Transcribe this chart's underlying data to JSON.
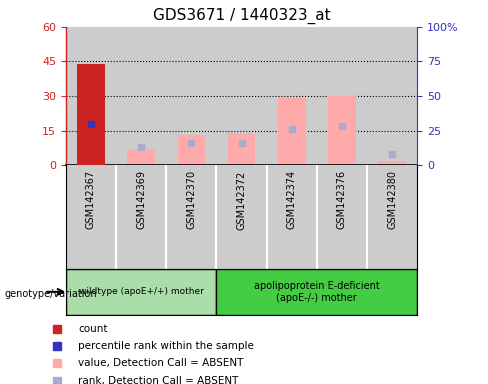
{
  "title": "GDS3671 / 1440323_at",
  "samples": [
    "GSM142367",
    "GSM142369",
    "GSM142370",
    "GSM142372",
    "GSM142374",
    "GSM142376",
    "GSM142380"
  ],
  "count_values": [
    44,
    null,
    null,
    null,
    null,
    null,
    null
  ],
  "percentile_rank": [
    30,
    null,
    null,
    null,
    null,
    null,
    null
  ],
  "absent_value": [
    null,
    7,
    13,
    14,
    29,
    30,
    2
  ],
  "absent_rank": [
    null,
    13,
    16,
    16,
    26,
    28,
    8
  ],
  "ylim_left": [
    0,
    60
  ],
  "ylim_right": [
    0,
    100
  ],
  "yticks_left": [
    0,
    15,
    30,
    45,
    60
  ],
  "ytick_labels_left": [
    "0",
    "15",
    "30",
    "45",
    "60"
  ],
  "yticks_right": [
    0,
    25,
    50,
    75,
    100
  ],
  "ytick_labels_right": [
    "0",
    "25",
    "50",
    "75",
    "100%"
  ],
  "group1_label": "wildtype (apoE+/+) mother",
  "group2_label": "apolipoprotein E-deficient\n(apoE-/-) mother",
  "color_count": "#cc2222",
  "color_percentile": "#3333bb",
  "color_absent_value": "#ffaaaa",
  "color_absent_rank": "#aaaacc",
  "color_group1": "#aaddaa",
  "color_group2": "#44cc44",
  "bg_color": "#cccccc",
  "legend_items": [
    {
      "color": "#cc2222",
      "label": "count"
    },
    {
      "color": "#3333bb",
      "label": "percentile rank within the sample"
    },
    {
      "color": "#ffaaaa",
      "label": "value, Detection Call = ABSENT"
    },
    {
      "color": "#aaaacc",
      "label": "rank, Detection Call = ABSENT"
    }
  ]
}
